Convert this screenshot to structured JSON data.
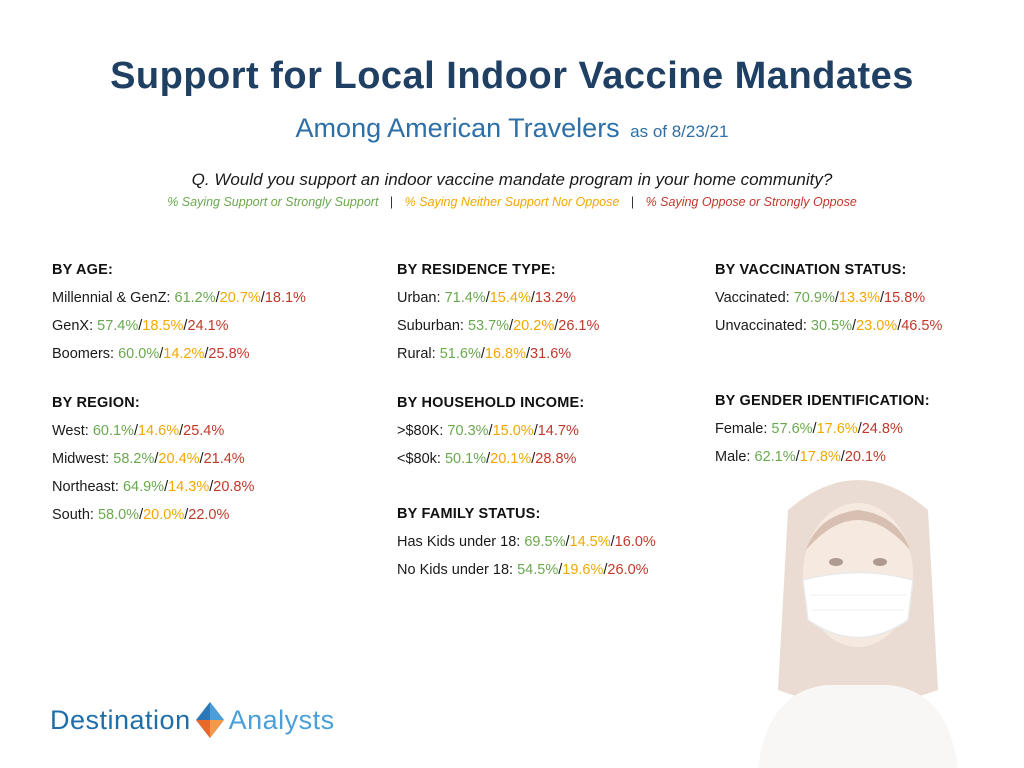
{
  "title": "Support for Local Indoor Vaccine Mandates",
  "subtitle": {
    "main": "Among American Travelers",
    "date": "as of 8/23/21"
  },
  "question": "Q. Would you support an indoor vaccine mandate program in your home community?",
  "legend": {
    "support": "% Saying Support or Strongly Support",
    "neither": "% Saying Neither Support Nor Oppose",
    "oppose": "% Saying Oppose or Strongly Oppose",
    "separator": "|"
  },
  "colors": {
    "support": "#6aa84f",
    "neither": "#f0a800",
    "oppose": "#c0392b",
    "title": "#1f4063"
  },
  "sections": {
    "age": {
      "header": "BY AGE:",
      "rows": [
        {
          "label": "Millennial & GenZ:",
          "s": "61.2%",
          "n": "20.7%",
          "o": "18.1%"
        },
        {
          "label": "GenX:",
          "s": "57.4%",
          "n": "18.5%",
          "o": "24.1%"
        },
        {
          "label": "Boomers:",
          "s": "60.0%",
          "n": "14.2%",
          "o": "25.8%"
        }
      ]
    },
    "region": {
      "header": "BY REGION:",
      "rows": [
        {
          "label": "West:",
          "s": "60.1%",
          "n": "14.6%",
          "o": "25.4%"
        },
        {
          "label": "Midwest:",
          "s": "58.2%",
          "n": "20.4%",
          "o": "21.4%"
        },
        {
          "label": "Northeast:",
          "s": "64.9%",
          "n": "14.3%",
          "o": "20.8%"
        },
        {
          "label": "South:",
          "s": "58.0%",
          "n": "20.0%",
          "o": "22.0%"
        }
      ]
    },
    "residence": {
      "header": "BY RESIDENCE TYPE:",
      "rows": [
        {
          "label": "Urban:",
          "s": "71.4%",
          "n": "15.4%",
          "o": "13.2%"
        },
        {
          "label": "Suburban:",
          "s": "53.7%",
          "n": "20.2%",
          "o": "26.1%"
        },
        {
          "label": "Rural:",
          "s": "51.6%",
          "n": "16.8%",
          "o": "31.6%"
        }
      ]
    },
    "income": {
      "header": "BY HOUSEHOLD INCOME:",
      "rows": [
        {
          "label": ">$80K:",
          "s": "70.3%",
          "n": "15.0%",
          "o": "14.7%"
        },
        {
          "label": "<$80k:",
          "s": "50.1%",
          "n": "20.1%",
          "o": "28.8%"
        }
      ]
    },
    "family": {
      "header": "BY FAMILY STATUS:",
      "rows": [
        {
          "label": "Has Kids under 18:",
          "s": "69.5%",
          "n": "14.5%",
          "o": "16.0%"
        },
        {
          "label": "No Kids under 18:",
          "s": "54.5%",
          "n": "19.6%",
          "o": "26.0%"
        }
      ]
    },
    "vaccination": {
      "header": "BY VACCINATION STATUS:",
      "rows": [
        {
          "label": "Vaccinated:",
          "s": "70.9%",
          "n": "13.3%",
          "o": "15.8%"
        },
        {
          "label": "Unvaccinated:",
          "s": "30.5%",
          "n": "23.0%",
          "o": "46.5%"
        }
      ]
    },
    "gender": {
      "header": "BY GENDER IDENTIFICATION:",
      "rows": [
        {
          "label": "Female:",
          "s": "57.6%",
          "n": "17.6%",
          "o": "24.8%"
        },
        {
          "label": "Male:",
          "s": "62.1%",
          "n": "17.8%",
          "o": "20.1%"
        }
      ]
    }
  },
  "logo": {
    "word1": "Destination",
    "word2": "Analysts",
    "icon": "diamond-logo-mark"
  },
  "image": {
    "icon": "woman-with-face-mask-photo"
  }
}
